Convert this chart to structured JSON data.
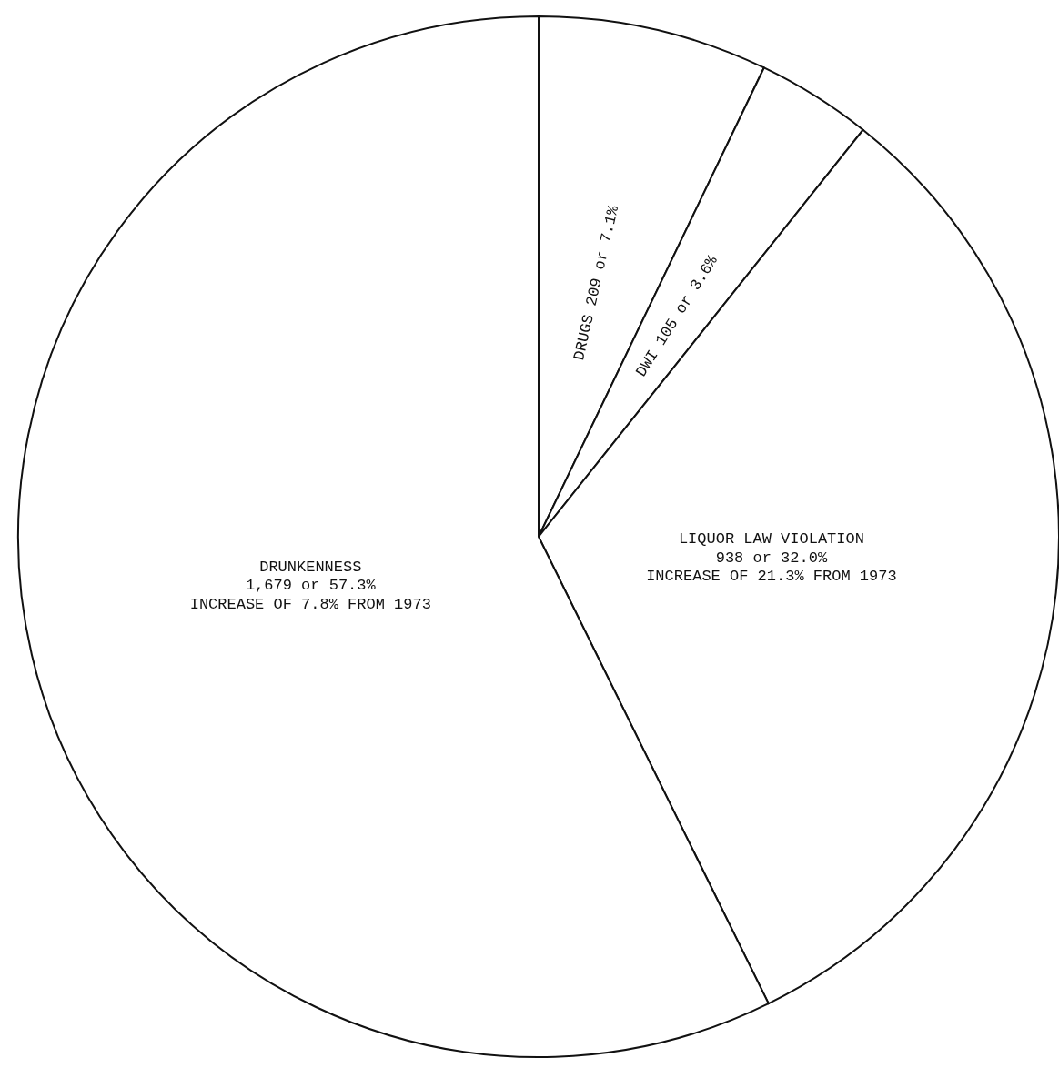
{
  "chart_data": {
    "type": "pie",
    "categories": [
      "DRUGS",
      "DWI",
      "LIQUOR LAW VIOLATION",
      "DRUNKENNESS"
    ],
    "values": [
      209,
      105,
      938,
      1679
    ],
    "colors": [
      "#ffffff",
      "#ffffff",
      "#ffffff",
      "#ffffff"
    ],
    "value_labels": [
      "209 or 7.1%",
      "105 or 3.6%",
      "938 or 32.0%",
      "1,679 or 57.3%"
    ],
    "annotations": [
      {
        "text": "INCREASE OF 21.3% FROM 1973",
        "x": "LIQUOR LAW VIOLATION"
      },
      {
        "text": "INCREASE OF 7.8% FROM 1973",
        "x": "DRUNKENNESS"
      }
    ]
  }
}
